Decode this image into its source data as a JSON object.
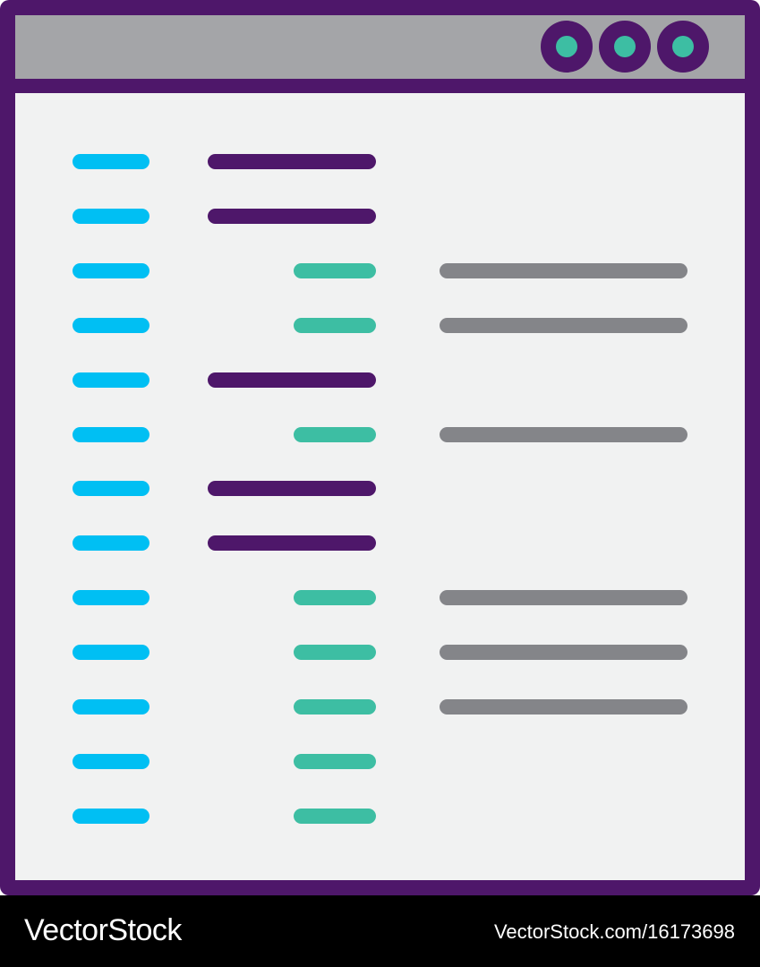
{
  "colors": {
    "frame": "#4e176a",
    "titlebar": "#a4a5a8",
    "content": "#f1f2f2",
    "line_number": "#00bff3",
    "keyword": "#4e176a",
    "indent": "#3dbea3",
    "value": "#848589"
  },
  "window_buttons": [
    "circle-button",
    "circle-button",
    "circle-button"
  ],
  "code_rows": [
    {
      "keyword": true,
      "indent": false,
      "value": false
    },
    {
      "keyword": true,
      "indent": false,
      "value": false
    },
    {
      "keyword": false,
      "indent": true,
      "value": true
    },
    {
      "keyword": false,
      "indent": true,
      "value": true
    },
    {
      "keyword": true,
      "indent": false,
      "value": false
    },
    {
      "keyword": false,
      "indent": true,
      "value": true
    },
    {
      "keyword": true,
      "indent": false,
      "value": false
    },
    {
      "keyword": true,
      "indent": false,
      "value": false
    },
    {
      "keyword": false,
      "indent": true,
      "value": true
    },
    {
      "keyword": false,
      "indent": true,
      "value": true
    },
    {
      "keyword": false,
      "indent": true,
      "value": true
    },
    {
      "keyword": false,
      "indent": true,
      "value": false
    },
    {
      "keyword": false,
      "indent": true,
      "value": false
    }
  ],
  "footer": {
    "brand": "VectorStock",
    "credit": "VectorStock.com/16173698"
  }
}
